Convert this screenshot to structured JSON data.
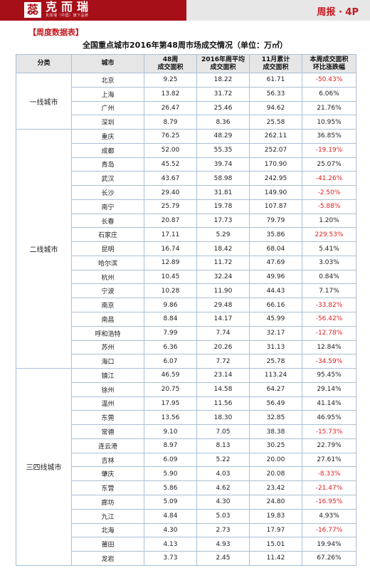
{
  "header": {
    "logo_char": "蕊",
    "logo_text": "克而瑞",
    "logo_subtitle": "克而瑞（中国）旗下品牌",
    "issue": "周报 · 4P",
    "colors": {
      "brand": "#a60f18",
      "accent": "#c4161c",
      "negative": "#e02020"
    }
  },
  "section_title": "【周度数据表】",
  "table_title": "全国重点城市2016年第48周市场成交情况（单位：万㎡）",
  "table": {
    "columns": [
      "分类",
      "城市",
      "48周\n成交面积",
      "2016年周平均\n成交面积",
      "11月累计\n成交面积",
      "本周成交面积\n环比涨跌幅"
    ],
    "groups": [
      {
        "name": "一线城市",
        "rows": [
          {
            "city": "北京",
            "week48": "9.25",
            "avg": "18.22",
            "nov": "61.71",
            "change": "-50.43%"
          },
          {
            "city": "上海",
            "week48": "13.82",
            "avg": "31.72",
            "nov": "56.33",
            "change": "6.06%"
          },
          {
            "city": "广州",
            "week48": "26.47",
            "avg": "25.46",
            "nov": "94.62",
            "change": "21.76%"
          },
          {
            "city": "深圳",
            "week48": "8.79",
            "avg": "8.36",
            "nov": "25.58",
            "change": "10.95%"
          }
        ]
      },
      {
        "name": "二线城市",
        "rows": [
          {
            "city": "重庆",
            "week48": "76.25",
            "avg": "48.29",
            "nov": "262.11",
            "change": "36.85%"
          },
          {
            "city": "成都",
            "week48": "52.00",
            "avg": "55.35",
            "nov": "252.07",
            "change": "-19.19%"
          },
          {
            "city": "青岛",
            "week48": "45.52",
            "avg": "39.74",
            "nov": "170.90",
            "change": "25.07%"
          },
          {
            "city": "武汉",
            "week48": "43.67",
            "avg": "58.98",
            "nov": "242.95",
            "change": "-41.26%"
          },
          {
            "city": "长沙",
            "week48": "29.40",
            "avg": "31.81",
            "nov": "149.90",
            "change": "-2.50%"
          },
          {
            "city": "南宁",
            "week48": "25.79",
            "avg": "19.78",
            "nov": "107.87",
            "change": "-5.88%"
          },
          {
            "city": "长春",
            "week48": "20.87",
            "avg": "17.73",
            "nov": "79.79",
            "change": "1.20%"
          },
          {
            "city": "石家庄",
            "week48": "17.11",
            "avg": "5.29",
            "nov": "35.86",
            "change": "229.53%"
          },
          {
            "city": "昆明",
            "week48": "16.74",
            "avg": "18.42",
            "nov": "68.04",
            "change": "5.41%"
          },
          {
            "city": "哈尔滨",
            "week48": "12.89",
            "avg": "11.72",
            "nov": "47.69",
            "change": "3.03%"
          },
          {
            "city": "杭州",
            "week48": "10.45",
            "avg": "32.24",
            "nov": "49.96",
            "change": "0.84%"
          },
          {
            "city": "宁波",
            "week48": "10.28",
            "avg": "11.90",
            "nov": "44.43",
            "change": "7.17%"
          },
          {
            "city": "南京",
            "week48": "9.86",
            "avg": "29.48",
            "nov": "66.16",
            "change": "-33.82%"
          },
          {
            "city": "南昌",
            "week48": "8.84",
            "avg": "14.17",
            "nov": "45.99",
            "change": "-56.42%"
          },
          {
            "city": "呼和浩特",
            "week48": "7.99",
            "avg": "7.74",
            "nov": "32.17",
            "change": "-12.78%"
          },
          {
            "city": "苏州",
            "week48": "6.36",
            "avg": "20.26",
            "nov": "31.13",
            "change": "12.84%"
          },
          {
            "city": "海口",
            "week48": "6.07",
            "avg": "7.72",
            "nov": "25.78",
            "change": "-34.59%"
          }
        ]
      },
      {
        "name": "三四线城市",
        "rows": [
          {
            "city": "镇江",
            "week48": "46.59",
            "avg": "23.14",
            "nov": "113.24",
            "change": "95.45%"
          },
          {
            "city": "徐州",
            "week48": "20.75",
            "avg": "14.58",
            "nov": "64.27",
            "change": "29.14%"
          },
          {
            "city": "温州",
            "week48": "17.95",
            "avg": "11.56",
            "nov": "56.49",
            "change": "41.14%"
          },
          {
            "city": "东莞",
            "week48": "13.56",
            "avg": "18.30",
            "nov": "32.85",
            "change": "46.95%"
          },
          {
            "city": "常德",
            "week48": "9.10",
            "avg": "7.05",
            "nov": "38.38",
            "change": "-15.73%"
          },
          {
            "city": "连云港",
            "week48": "8.97",
            "avg": "8.13",
            "nov": "30.25",
            "change": "22.79%"
          },
          {
            "city": "吉林",
            "week48": "6.09",
            "avg": "5.22",
            "nov": "20.00",
            "change": "27.61%"
          },
          {
            "city": "肇庆",
            "week48": "5.90",
            "avg": "4.03",
            "nov": "20.08",
            "change": "-8.33%"
          },
          {
            "city": "东营",
            "week48": "5.86",
            "avg": "4.62",
            "nov": "23.42",
            "change": "-21.47%"
          },
          {
            "city": "廊坊",
            "week48": "5.09",
            "avg": "4.30",
            "nov": "24.80",
            "change": "-16.95%"
          },
          {
            "city": "九江",
            "week48": "4.84",
            "avg": "5.03",
            "nov": "19.83",
            "change": "4.93%"
          },
          {
            "city": "北海",
            "week48": "4.30",
            "avg": "2.73",
            "nov": "17.97",
            "change": "-16.77%"
          },
          {
            "city": "莆田",
            "week48": "4.13",
            "avg": "4.93",
            "nov": "15.01",
            "change": "19.94%"
          },
          {
            "city": "龙岩",
            "week48": "3.73",
            "avg": "2.45",
            "nov": "11.42",
            "change": "67.26%"
          }
        ]
      }
    ]
  }
}
